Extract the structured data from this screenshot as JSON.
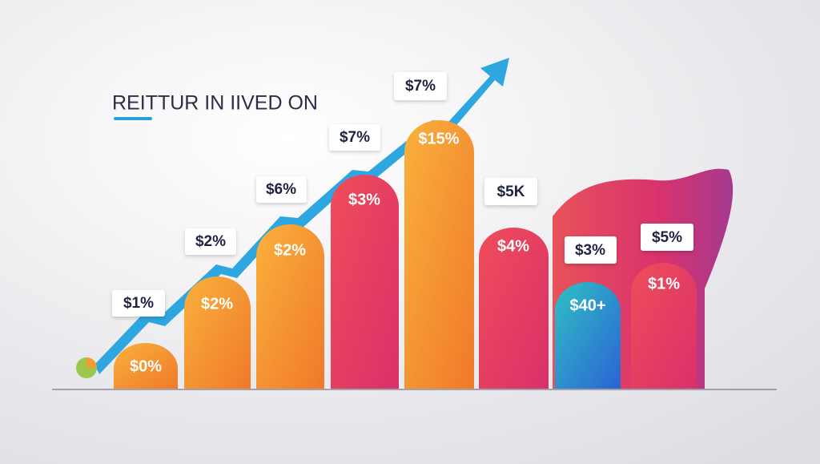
{
  "title": "REITTUR IN IIVED ON",
  "bars": [
    {
      "label": "$0%",
      "callout": "$1%"
    },
    {
      "label": "$2%",
      "callout": "$2%"
    },
    {
      "label": "$2%",
      "callout": "$6%"
    },
    {
      "label": "$3%",
      "callout": "$7%"
    },
    {
      "label": "$15%",
      "callout": "$7%"
    },
    {
      "label": "$4%",
      "callout": "$5K"
    },
    {
      "label": "$40+",
      "callout": "$3%"
    },
    {
      "label": "$1%",
      "callout": "$5%"
    }
  ]
}
